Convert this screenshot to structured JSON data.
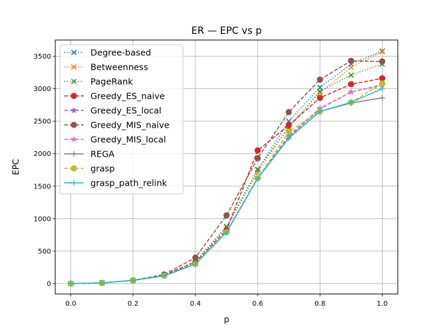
{
  "chart_data": {
    "type": "line",
    "title": "ER — EPC vs p",
    "xlabel": "p",
    "ylabel": "EPC",
    "xlim": [
      -0.05,
      1.05
    ],
    "ylim": [
      -160,
      3750
    ],
    "xticks": [
      "0.0",
      "0.2",
      "0.4",
      "0.6",
      "0.8",
      "1.0"
    ],
    "xtick_values": [
      0.0,
      0.2,
      0.4,
      0.6,
      0.8,
      1.0
    ],
    "yticks": [
      "0",
      "500",
      "1000",
      "1500",
      "2000",
      "2500",
      "3000",
      "3500"
    ],
    "ytick_values": [
      0,
      500,
      1000,
      1500,
      2000,
      2500,
      3000,
      3500
    ],
    "grid": true,
    "legend_placement": "top-left",
    "x": [
      0.0,
      0.1,
      0.2,
      0.3,
      0.4,
      0.5,
      0.6,
      0.7,
      0.8,
      0.9,
      1.0
    ],
    "series": [
      {
        "name": "Degree-based",
        "color": "#1f77b4",
        "dash": "dotted",
        "marker": "x",
        "values": [
          0,
          10,
          50,
          130,
          340,
          880,
          1750,
          2500,
          3020,
          3380,
          3580
        ]
      },
      {
        "name": "Betweenness",
        "color": "#ff7f0e",
        "dash": "dotted",
        "marker": "x",
        "values": [
          0,
          10,
          50,
          130,
          340,
          870,
          1710,
          2420,
          2940,
          3330,
          3570
        ]
      },
      {
        "name": "PageRank",
        "color": "#2ca02c",
        "dash": "dotted",
        "marker": "x",
        "values": [
          0,
          10,
          50,
          130,
          340,
          870,
          1760,
          2400,
          2960,
          3210,
          3380
        ]
      },
      {
        "name": "Greedy_ES_naive",
        "color": "#d62728",
        "dash": "dashed",
        "marker": "circle",
        "values": [
          0,
          10,
          50,
          130,
          330,
          830,
          2050,
          2440,
          2860,
          3070,
          3160
        ]
      },
      {
        "name": "Greedy_ES_local",
        "color": "#9467bd",
        "dash": "dashed",
        "marker": "star",
        "values": [
          0,
          10,
          50,
          120,
          300,
          800,
          1620,
          2260,
          2690,
          2950,
          3060
        ]
      },
      {
        "name": "Greedy_MIS_naive",
        "color": "#8c564b",
        "dash": "dashed",
        "marker": "circle",
        "values": [
          0,
          10,
          50,
          140,
          400,
          1050,
          1930,
          2640,
          3140,
          3430,
          3420
        ]
      },
      {
        "name": "Greedy_MIS_local",
        "color": "#e377c2",
        "dash": "dashed",
        "marker": "star",
        "values": [
          0,
          10,
          50,
          120,
          300,
          800,
          1630,
          2280,
          2700,
          2950,
          3050
        ]
      },
      {
        "name": "REGA",
        "color": "#7f7f7f",
        "dash": "solid",
        "marker": "plus",
        "values": [
          0,
          10,
          50,
          120,
          300,
          790,
          1620,
          2240,
          2650,
          2780,
          2860
        ]
      },
      {
        "name": "grasp",
        "color": "#bcbd22",
        "dash": "dashed",
        "marker": "circle",
        "values": [
          0,
          10,
          50,
          120,
          300,
          790,
          1620,
          2340,
          2650,
          2790,
          3080
        ]
      },
      {
        "name": "grasp_path_relink",
        "color": "#17becf",
        "dash": "solid",
        "marker": "plus",
        "values": [
          0,
          10,
          50,
          120,
          300,
          790,
          1620,
          2240,
          2650,
          2790,
          3000
        ]
      }
    ]
  }
}
